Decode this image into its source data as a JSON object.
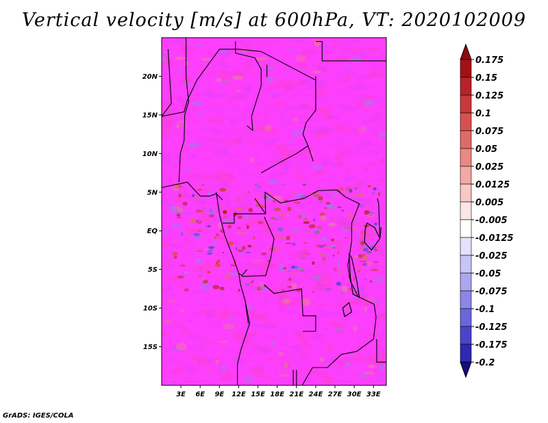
{
  "title": "Vertical velocity [m/s] at 600hPa, VT: 2020102009",
  "credit": "GrADS: IGES/COLA",
  "map": {
    "lon_range": [
      0,
      35
    ],
    "lat_range": [
      -20,
      25
    ],
    "lat_ticks": [
      {
        "lat": 20,
        "label": "20N"
      },
      {
        "lat": 15,
        "label": "15N"
      },
      {
        "lat": 10,
        "label": "10N"
      },
      {
        "lat": 5,
        "label": "5N"
      },
      {
        "lat": 0,
        "label": "EQ"
      },
      {
        "lat": -5,
        "label": "5S"
      },
      {
        "lat": -10,
        "label": "10S"
      },
      {
        "lat": -15,
        "label": "15S"
      }
    ],
    "lon_ticks": [
      {
        "lon": 3,
        "label": "3E"
      },
      {
        "lon": 6,
        "label": "6E"
      },
      {
        "lon": 9,
        "label": "9E"
      },
      {
        "lon": 12,
        "label": "12E"
      },
      {
        "lon": 15,
        "label": "15E"
      },
      {
        "lon": 18,
        "label": "18E"
      },
      {
        "lon": 21,
        "label": "21E"
      },
      {
        "lon": 24,
        "label": "24E"
      },
      {
        "lon": 27,
        "label": "27E"
      },
      {
        "lon": 30,
        "label": "30E"
      },
      {
        "lon": 33,
        "label": "33E"
      }
    ]
  },
  "colorbar": {
    "levels": [
      {
        "label": "0.175",
        "color": "#a50f15"
      },
      {
        "label": "0.15",
        "color": "#b8232a"
      },
      {
        "label": "0.125",
        "color": "#c8383a"
      },
      {
        "label": "0.1",
        "color": "#d65050"
      },
      {
        "label": "0.075",
        "color": "#e06a68"
      },
      {
        "label": "0.05",
        "color": "#ea8884"
      },
      {
        "label": "0.025",
        "color": "#f2a8a4"
      },
      {
        "label": "0.0125",
        "color": "#f8c8c4"
      },
      {
        "label": "0.005",
        "color": "#fce6e4"
      },
      {
        "label": "-0.005",
        "color": "#ffffff"
      },
      {
        "label": "-0.0125",
        "color": "#e4e2fc"
      },
      {
        "label": "-0.025",
        "color": "#c8c4f6"
      },
      {
        "label": "-0.05",
        "color": "#aca6f0"
      },
      {
        "label": "-0.075",
        "color": "#8c86e8"
      },
      {
        "label": "-0.1",
        "color": "#6c66dc"
      },
      {
        "label": "-0.125",
        "color": "#4a44ca"
      },
      {
        "label": "-0.175",
        "color": "#2e28b2"
      },
      {
        "label": "-0.2",
        "color": "#1c1494"
      }
    ],
    "top_cap_color": "#8c0a10",
    "bottom_cap_color": "#140c80"
  }
}
